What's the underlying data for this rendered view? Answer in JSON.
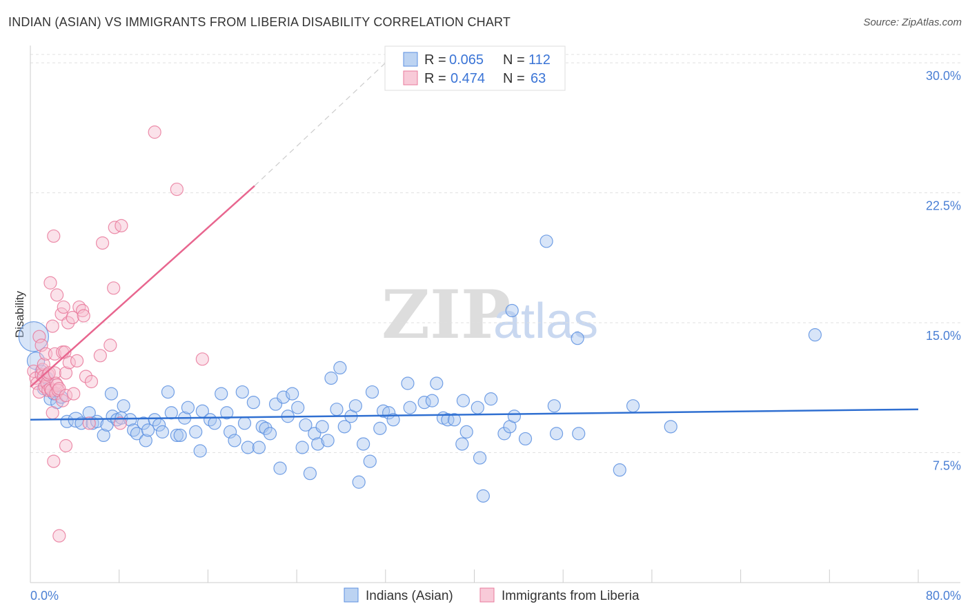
{
  "title": "INDIAN (ASIAN) VS IMMIGRANTS FROM LIBERIA DISABILITY CORRELATION CHART",
  "source": "Source: ZipAtlas.com",
  "watermark": {
    "zip": "ZIP",
    "atlas": "atlas"
  },
  "legend": {
    "r_label": "R =",
    "n_label": "N =",
    "rows": [
      {
        "r": "0.065",
        "n": "112",
        "color": "#8fb5ea"
      },
      {
        "r": "0.474",
        "n": "63",
        "color": "#f4a6be"
      }
    ]
  },
  "bottom_legend": [
    "Indians (Asian)",
    "Immigrants from Liberia"
  ],
  "chart_data": {
    "type": "scatter",
    "title": "INDIAN (ASIAN) VS IMMIGRANTS FROM LIBERIA DISABILITY CORRELATION CHART",
    "xlabel": "",
    "ylabel": "Disability",
    "xlim": [
      0,
      80
    ],
    "ylim": [
      0,
      31
    ],
    "x_tick_labels": [
      "0.0%",
      "80.0%"
    ],
    "y_ticks": [
      7.5,
      15.0,
      22.5,
      30.0
    ],
    "y_tick_labels": [
      "7.5%",
      "15.0%",
      "22.5%",
      "30.0%"
    ],
    "grid": true,
    "legend_position": "top-center",
    "series": [
      {
        "name": "Indians (Asian)",
        "color": "#5b8fe0",
        "fill": "#a9c6f0",
        "trend": {
          "x": [
            0,
            80
          ],
          "y": [
            9.4,
            10.0
          ]
        },
        "points": [
          [
            0.3,
            14.2,
            2.4
          ],
          [
            0.5,
            12.8,
            1.4
          ],
          [
            1,
            12.2,
            1
          ],
          [
            1.2,
            11.2,
            1
          ],
          [
            1.5,
            11.8,
            1
          ],
          [
            1.8,
            10.6,
            1
          ],
          [
            2.1,
            10.9,
            1
          ],
          [
            2.4,
            10.4,
            1
          ],
          [
            2.8,
            10.7,
            1
          ],
          [
            3.3,
            9.3,
            1
          ],
          [
            4.1,
            9.4,
            1.2
          ],
          [
            4.6,
            9.2,
            1
          ],
          [
            5.3,
            9.8,
            1
          ],
          [
            5.6,
            9.2,
            1
          ],
          [
            6.0,
            9.3,
            1
          ],
          [
            6.6,
            8.5,
            1
          ],
          [
            6.9,
            9.1,
            1
          ],
          [
            7.4,
            9.6,
            1
          ],
          [
            7.3,
            10.9,
            1
          ],
          [
            7.8,
            9.4,
            1
          ],
          [
            8.2,
            9.5,
            1
          ],
          [
            8.4,
            10.2,
            1
          ],
          [
            9.0,
            9.4,
            1
          ],
          [
            9.3,
            8.8,
            1
          ],
          [
            9.6,
            8.6,
            1
          ],
          [
            10.2,
            9.2,
            1
          ],
          [
            10.4,
            8.2,
            1
          ],
          [
            10.6,
            8.8,
            1
          ],
          [
            11.2,
            9.4,
            1
          ],
          [
            11.6,
            9.1,
            1
          ],
          [
            11.9,
            8.7,
            1
          ],
          [
            12.4,
            11.0,
            1
          ],
          [
            12.7,
            9.8,
            1
          ],
          [
            13.2,
            8.5,
            1
          ],
          [
            13.5,
            8.5,
            1
          ],
          [
            13.9,
            9.5,
            1
          ],
          [
            14.2,
            10.1,
            1
          ],
          [
            14.9,
            8.7,
            1
          ],
          [
            15.3,
            7.6,
            1
          ],
          [
            15.5,
            9.9,
            1
          ],
          [
            16.2,
            9.4,
            1
          ],
          [
            16.6,
            9.2,
            1
          ],
          [
            17.2,
            10.9,
            1
          ],
          [
            17.7,
            9.8,
            1
          ],
          [
            18.0,
            8.7,
            1
          ],
          [
            18.4,
            8.2,
            1
          ],
          [
            19.1,
            11.0,
            1
          ],
          [
            19.3,
            9.2,
            1
          ],
          [
            19.6,
            7.8,
            1
          ],
          [
            20.1,
            10.4,
            1
          ],
          [
            20.6,
            7.8,
            1
          ],
          [
            20.9,
            9.0,
            1
          ],
          [
            21.2,
            8.9,
            1
          ],
          [
            21.6,
            8.6,
            1
          ],
          [
            22.1,
            10.3,
            1
          ],
          [
            22.5,
            6.6,
            1
          ],
          [
            22.8,
            10.7,
            1
          ],
          [
            23.2,
            9.6,
            1
          ],
          [
            23.6,
            10.9,
            1
          ],
          [
            24.1,
            10.1,
            1
          ],
          [
            24.5,
            7.8,
            1
          ],
          [
            24.8,
            9.1,
            1
          ],
          [
            25.2,
            6.3,
            1
          ],
          [
            25.6,
            8.6,
            1
          ],
          [
            25.9,
            8.0,
            1
          ],
          [
            26.3,
            9.0,
            1
          ],
          [
            26.8,
            8.2,
            1
          ],
          [
            27.1,
            11.8,
            1
          ],
          [
            27.6,
            10.0,
            1
          ],
          [
            27.9,
            12.4,
            1
          ],
          [
            28.3,
            9.0,
            1
          ],
          [
            28.9,
            9.6,
            1
          ],
          [
            29.3,
            10.2,
            1
          ],
          [
            29.6,
            5.8,
            1
          ],
          [
            30.0,
            8.0,
            1
          ],
          [
            30.6,
            7.0,
            1
          ],
          [
            30.8,
            11.0,
            1
          ],
          [
            31.5,
            8.9,
            1
          ],
          [
            31.8,
            9.9,
            1
          ],
          [
            32.3,
            9.8,
            1
          ],
          [
            32.7,
            9.4,
            1
          ],
          [
            34.0,
            11.5,
            1
          ],
          [
            34.2,
            10.1,
            1
          ],
          [
            35.5,
            10.4,
            1
          ],
          [
            36.2,
            10.5,
            1
          ],
          [
            36.6,
            11.5,
            1
          ],
          [
            37.2,
            9.5,
            1
          ],
          [
            37.6,
            9.4,
            1
          ],
          [
            38.2,
            9.4,
            1
          ],
          [
            38.9,
            8.0,
            1
          ],
          [
            39.0,
            10.5,
            1
          ],
          [
            39.3,
            8.7,
            1
          ],
          [
            40.3,
            10.1,
            1
          ],
          [
            40.5,
            7.2,
            1
          ],
          [
            40.8,
            5.0,
            1
          ],
          [
            41.5,
            10.6,
            1
          ],
          [
            42.7,
            8.6,
            1
          ],
          [
            43.2,
            9.0,
            1
          ],
          [
            43.4,
            15.7,
            1
          ],
          [
            43.6,
            9.6,
            1
          ],
          [
            44.6,
            8.3,
            1
          ],
          [
            46.5,
            19.7,
            1
          ],
          [
            47.2,
            10.2,
            1
          ],
          [
            47.4,
            8.6,
            1
          ],
          [
            49.3,
            14.1,
            1
          ],
          [
            49.4,
            8.6,
            1
          ],
          [
            53.1,
            6.5,
            1
          ],
          [
            54.3,
            10.2,
            1
          ],
          [
            57.7,
            9.0,
            1
          ],
          [
            70.7,
            14.3,
            1
          ]
        ]
      },
      {
        "name": "Immigrants from Liberia",
        "color": "#e9799b",
        "fill": "#f6bfd0",
        "trend": {
          "x": [
            0,
            20.2
          ],
          "y": [
            11.3,
            22.9
          ]
        },
        "trend_extension": {
          "x": [
            20.2,
            32
          ],
          "y": [
            22.9,
            30
          ]
        },
        "points": [
          [
            0.3,
            12.2,
            1
          ],
          [
            0.5,
            11.8,
            1
          ],
          [
            0.6,
            11.5,
            1
          ],
          [
            0.8,
            11.0,
            1
          ],
          [
            0.8,
            14.2,
            1
          ],
          [
            1.0,
            12.0,
            1
          ],
          [
            1.0,
            13.7,
            1
          ],
          [
            1.1,
            12.3,
            1
          ],
          [
            1.2,
            12.6,
            1
          ],
          [
            1.2,
            11.9,
            1
          ],
          [
            1.3,
            11.3,
            1
          ],
          [
            1.4,
            13.2,
            1
          ],
          [
            1.5,
            11.5,
            1
          ],
          [
            1.6,
            11.1,
            1
          ],
          [
            1.6,
            12.0,
            1
          ],
          [
            1.7,
            12.1,
            1
          ],
          [
            1.8,
            17.3,
            1
          ],
          [
            1.8,
            11.2,
            1
          ],
          [
            1.9,
            11.1,
            1
          ],
          [
            2.0,
            9.8,
            1
          ],
          [
            2.0,
            14.8,
            1
          ],
          [
            2.1,
            20.0,
            1
          ],
          [
            2.1,
            7.0,
            1
          ],
          [
            2.2,
            13.2,
            1
          ],
          [
            2.2,
            12.1,
            1
          ],
          [
            2.3,
            11.5,
            1
          ],
          [
            2.3,
            10.9,
            1
          ],
          [
            2.4,
            16.6,
            1
          ],
          [
            2.4,
            11.4,
            1
          ],
          [
            2.5,
            11.1,
            1
          ],
          [
            2.6,
            11.2,
            1
          ],
          [
            2.8,
            15.5,
            1
          ],
          [
            2.9,
            13.3,
            1
          ],
          [
            2.9,
            10.5,
            1
          ],
          [
            2.6,
            2.7,
            1
          ],
          [
            3.0,
            15.9,
            1
          ],
          [
            3.1,
            13.3,
            1
          ],
          [
            3.2,
            7.9,
            1
          ],
          [
            3.2,
            12.1,
            1
          ],
          [
            3.2,
            10.8,
            1
          ],
          [
            3.4,
            15.0,
            1
          ],
          [
            3.5,
            12.7,
            1
          ],
          [
            3.8,
            15.3,
            1
          ],
          [
            3.9,
            10.9,
            1
          ],
          [
            4.2,
            12.8,
            1
          ],
          [
            4.4,
            15.9,
            1
          ],
          [
            4.7,
            15.7,
            1
          ],
          [
            4.8,
            15.4,
            1
          ],
          [
            5.0,
            11.9,
            1
          ],
          [
            5.3,
            9.2,
            1
          ],
          [
            5.5,
            11.6,
            1
          ],
          [
            6.3,
            13.1,
            1
          ],
          [
            6.5,
            19.6,
            1
          ],
          [
            7.2,
            13.7,
            1
          ],
          [
            7.5,
            17.0,
            1
          ],
          [
            7.6,
            20.5,
            1
          ],
          [
            8.2,
            20.6,
            1
          ],
          [
            8.1,
            9.2,
            1
          ],
          [
            11.2,
            26.0,
            1
          ],
          [
            13.2,
            22.7,
            1
          ],
          [
            15.5,
            12.9,
            1
          ]
        ]
      }
    ]
  }
}
